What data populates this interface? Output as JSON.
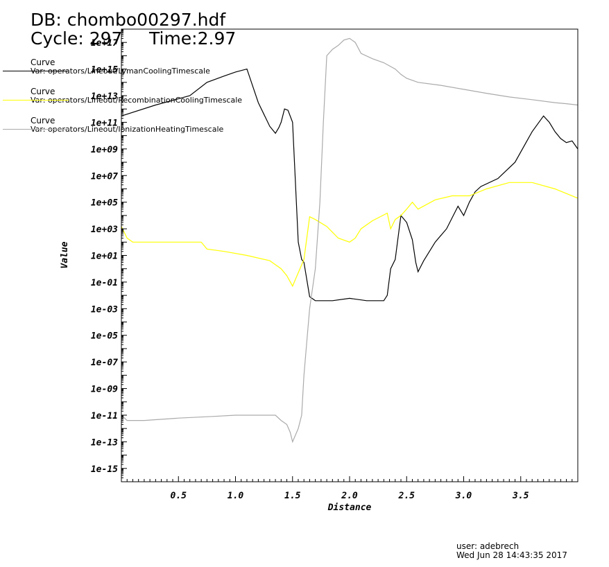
{
  "header": {
    "db_line": "DB: chombo00297.hdf",
    "cycle_line": "Cycle: 297",
    "time_line": "Time:2.97"
  },
  "legend": [
    {
      "title": "Curve",
      "var": "Var: operators/Lineout/LymanCoolingTimescale",
      "color": "#000000"
    },
    {
      "title": "Curve",
      "var": "Var: operators/Lineout/RecombinationCoolingTimescale",
      "color": "#ffff00"
    },
    {
      "title": "Curve",
      "var": "Var: operators/Lineout/IonizationHeatingTimescale",
      "color": "#aaaaaa"
    }
  ],
  "footer": {
    "user": "user: adebrech",
    "date": "Wed Jun 28 14:43:35 2017"
  },
  "chart_data": {
    "type": "line",
    "title": "",
    "xlabel": "Distance",
    "ylabel": "Value",
    "xlim": [
      0,
      4
    ],
    "ylim_log10": [
      -16,
      18
    ],
    "yscale": "log",
    "x_ticks": [
      {
        "v": 0.5,
        "label": "0.5"
      },
      {
        "v": 1.0,
        "label": "1.0"
      },
      {
        "v": 1.5,
        "label": "1.5"
      },
      {
        "v": 2.0,
        "label": "2.0"
      },
      {
        "v": 2.5,
        "label": "2.5"
      },
      {
        "v": 3.0,
        "label": "3.0"
      },
      {
        "v": 3.5,
        "label": "3.5"
      }
    ],
    "y_ticks": [
      {
        "e": 17,
        "label": "1e+17"
      },
      {
        "e": 15,
        "label": "1e+15"
      },
      {
        "e": 13,
        "label": "1e+13"
      },
      {
        "e": 11,
        "label": "1e+11"
      },
      {
        "e": 9,
        "label": "1e+09"
      },
      {
        "e": 7,
        "label": "1e+07"
      },
      {
        "e": 5,
        "label": "1e+05"
      },
      {
        "e": 3,
        "label": "1e+03"
      },
      {
        "e": 1,
        "label": "1e+01"
      },
      {
        "e": -1,
        "label": "1e-01"
      },
      {
        "e": -3,
        "label": "1e-03"
      },
      {
        "e": -5,
        "label": "1e-05"
      },
      {
        "e": -7,
        "label": "1e-07"
      },
      {
        "e": -9,
        "label": "1e-09"
      },
      {
        "e": -11,
        "label": "1e-11"
      },
      {
        "e": -13,
        "label": "1e-13"
      },
      {
        "e": -15,
        "label": "1e-15"
      }
    ],
    "grid": false,
    "legend_position": "top-left",
    "series": [
      {
        "name": "LymanCoolingTimescale",
        "color": "#000000",
        "x": [
          0.0,
          0.3,
          0.6,
          0.75,
          0.9,
          1.0,
          1.1,
          1.2,
          1.3,
          1.35,
          1.38,
          1.4,
          1.43,
          1.46,
          1.5,
          1.55,
          1.58,
          1.6,
          1.65,
          1.7,
          1.85,
          2.0,
          2.15,
          2.3,
          2.33,
          2.36,
          2.4,
          2.45,
          2.5,
          2.55,
          2.58,
          2.6,
          2.65,
          2.75,
          2.85,
          2.95,
          3.0,
          3.05,
          3.1,
          3.15,
          3.3,
          3.45,
          3.6,
          3.7,
          3.75,
          3.8,
          3.85,
          3.9,
          3.95,
          4.0
        ],
        "y": [
          300000000000.0,
          2000000000000.0,
          10000000000000.0,
          100000000000000.0,
          300000000000000.0,
          600000000000000.0,
          1000000000000000.0,
          3000000000000.0,
          50000000000.0,
          15000000000.0,
          40000000000.0,
          100000000000.0,
          1000000000000.0,
          800000000000.0,
          100000000000.0,
          100.0,
          5,
          3,
          0.008,
          0.004,
          0.004,
          0.006,
          0.004,
          0.004,
          0.01,
          1,
          5,
          10000.0,
          3000.0,
          150.0,
          3,
          0.6,
          4,
          100.0,
          1000.0,
          50000.0,
          10000.0,
          100000.0,
          600000.0,
          1500000.0,
          6000000.0,
          100000000.0,
          20000000000.0,
          300000000000.0,
          100000000000.0,
          20000000000.0,
          6000000000.0,
          3000000000.0,
          4000000000.0,
          1000000000.0
        ]
      },
      {
        "name": "RecombinationCoolingTimescale",
        "color": "#ffff00",
        "x": [
          0.0,
          0.05,
          0.1,
          0.3,
          0.6,
          0.7,
          0.75,
          0.9,
          1.1,
          1.3,
          1.4,
          1.45,
          1.5,
          1.55,
          1.6,
          1.65,
          1.7,
          1.8,
          1.9,
          2.0,
          2.05,
          2.1,
          2.2,
          2.33,
          2.36,
          2.4,
          2.45,
          2.5,
          2.55,
          2.6,
          2.75,
          2.9,
          3.05,
          3.2,
          3.4,
          3.6,
          3.8,
          4.0
        ],
        "y": [
          1500.0,
          200.0,
          100.0,
          100.0,
          100.0,
          100.0,
          30.0,
          20.0,
          10.0,
          4,
          1,
          0.3,
          0.05,
          0.5,
          5,
          8000.0,
          5000.0,
          1500.0,
          200.0,
          100.0,
          200.0,
          1000.0,
          4000.0,
          15000.0,
          1000.0,
          5000.0,
          10000.0,
          30000.0,
          100000.0,
          30000.0,
          150000.0,
          300000.0,
          300000.0,
          1000000.0,
          3000000.0,
          3000000.0,
          1000000.0,
          200000.0
        ]
      },
      {
        "name": "IonizationHeatingTimescale",
        "color": "#aaaaaa",
        "x": [
          0.0,
          0.05,
          0.2,
          0.5,
          0.8,
          1.0,
          1.2,
          1.35,
          1.4,
          1.45,
          1.48,
          1.5,
          1.55,
          1.58,
          1.6,
          1.63,
          1.65,
          1.7,
          1.74,
          1.77,
          1.8,
          1.85,
          1.9,
          1.95,
          2.0,
          2.05,
          2.1,
          2.2,
          2.3,
          2.4,
          2.45,
          2.5,
          2.6,
          2.8,
          3.0,
          3.2,
          3.4,
          3.6,
          3.8,
          3.9,
          4.0
        ],
        "y": [
          1e-11,
          4e-12,
          4e-12,
          6e-12,
          8e-12,
          1e-11,
          1e-11,
          1e-11,
          4e-12,
          2e-12,
          5e-13,
          1e-13,
          1e-12,
          1e-11,
          1e-08,
          1e-05,
          0.001,
          1,
          100000.0,
          100000000000.0,
          1e+16,
          3e+16,
          6e+16,
          1.5e+17,
          2e+17,
          1e+17,
          1.5e+16,
          6000000000000000.0,
          3000000000000000.0,
          1000000000000000.0,
          400000000000000.0,
          200000000000000.0,
          100000000000000.0,
          60000000000000.0,
          30000000000000.0,
          15000000000000.0,
          8000000000000.0,
          5000000000000.0,
          3000000000000.0,
          2500000000000.0,
          2000000000000.0
        ]
      }
    ]
  }
}
